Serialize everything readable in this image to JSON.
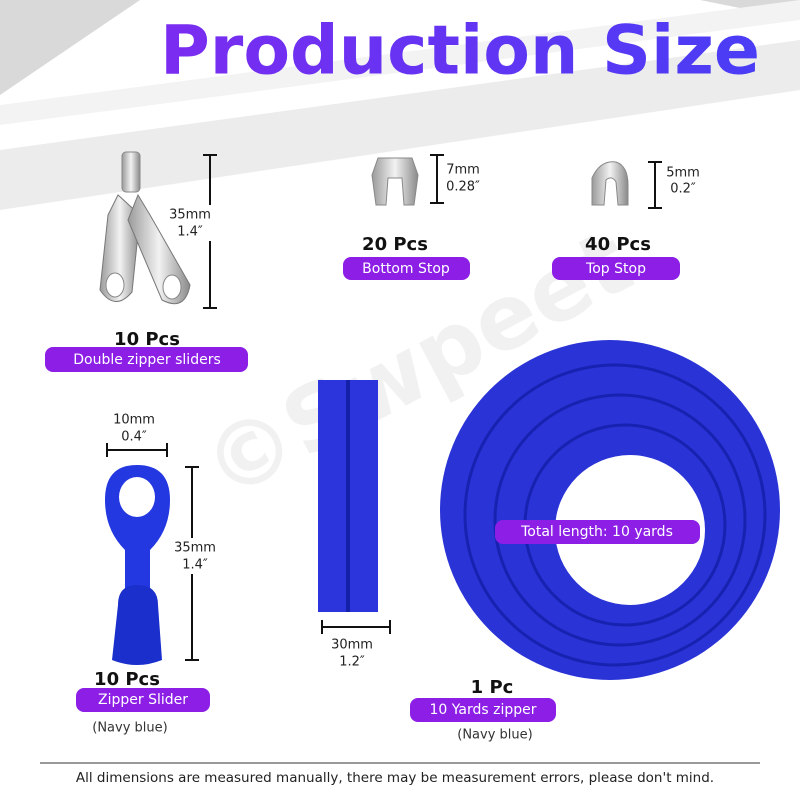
{
  "header": {
    "title": "Production Size",
    "watermark": "©Swpeet"
  },
  "items": [
    {
      "dimension": [
        "35mm",
        "1.4″"
      ],
      "quantity": "10 Pcs",
      "label": "Double zipper sliders"
    },
    {
      "dimension": [
        "7mm",
        "0.28″"
      ],
      "quantity": "20 Pcs",
      "label": "Bottom Stop"
    },
    {
      "dimension": [
        "5mm",
        "0.2″"
      ],
      "quantity": "40 Pcs",
      "label": "Top Stop"
    },
    {
      "width": [
        "10mm",
        "0.4″"
      ],
      "dimension": [
        "35mm",
        "1.4″"
      ],
      "quantity": "10 Pcs",
      "label": "Zipper Slider",
      "note": "(Navy blue)"
    },
    {
      "width": [
        "30mm",
        "1.2″"
      ],
      "length": "Total length: 10 yards",
      "quantity": "1 Pc",
      "label": "10 Yards zipper",
      "note": "(Navy blue)"
    }
  ],
  "footer": {
    "text": "All dimensions are measured manually, there may be measurement errors, please don't mind."
  }
}
